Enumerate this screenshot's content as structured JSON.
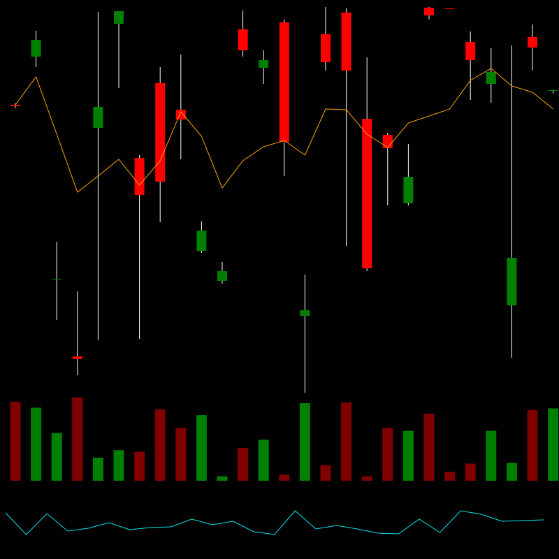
{
  "chart_data": {
    "type": "candlestick",
    "up_color": "#ff0000",
    "down_color": "#008000",
    "volume_up_color": "#800000",
    "volume_down_color": "#008000",
    "ma_color": "#ffa500",
    "indicator_color": "#00e5ee",
    "ylim": [
      230,
      800
    ],
    "open": [
      648,
      743,
      401,
      286,
      647,
      784,
      521,
      540,
      629,
      470,
      412,
      728,
      714,
      597,
      356,
      711,
      699,
      416,
      588,
      547,
      778,
      787,
      714,
      697,
      431,
      732,
      671
    ],
    "high": [
      652,
      756,
      454,
      383,
      783,
      784,
      578,
      704,
      722,
      483,
      425,
      785,
      728,
      772,
      407,
      790,
      788,
      718,
      610,
      594,
      790,
      788,
      755,
      731,
      735,
      765,
      672
    ],
    "low": [
      645,
      704,
      342,
      263,
      313,
      674,
      315,
      482,
      572,
      438,
      394,
      719,
      680,
      548,
      238,
      699,
      448,
      412,
      506,
      506,
      772,
      787,
      657,
      653,
      288,
      699,
      666
    ],
    "close": [
      650,
      719,
      400,
      290,
      617,
      766,
      574,
      681,
      643,
      441,
      398,
      758,
      703,
      768,
      348,
      751,
      782,
      630,
      607,
      509,
      789,
      788,
      740,
      680,
      363,
      747,
      670
    ],
    "ma": [
      650,
      690,
      608,
      525,
      548,
      572,
      535,
      570,
      640,
      605,
      531,
      570,
      590,
      599,
      578,
      644,
      643,
      608,
      589,
      624,
      634,
      644,
      685,
      702,
      677,
      668,
      644
    ],
    "volume_ylim": [
      0,
      120
    ],
    "volume": [
      106,
      98,
      64,
      112,
      31,
      41,
      39,
      96,
      71,
      88,
      6,
      44,
      55,
      8,
      104,
      21,
      105,
      6,
      71,
      67,
      90,
      12,
      23,
      67,
      24,
      95,
      97
    ],
    "indicator_ylim": [
      0,
      100
    ],
    "indicator": [
      66,
      35,
      65,
      40,
      44,
      52,
      42,
      45,
      46,
      57,
      49,
      54,
      39,
      35,
      69,
      43,
      48,
      43,
      37,
      36,
      57,
      38,
      69,
      64,
      54,
      55,
      56
    ]
  }
}
